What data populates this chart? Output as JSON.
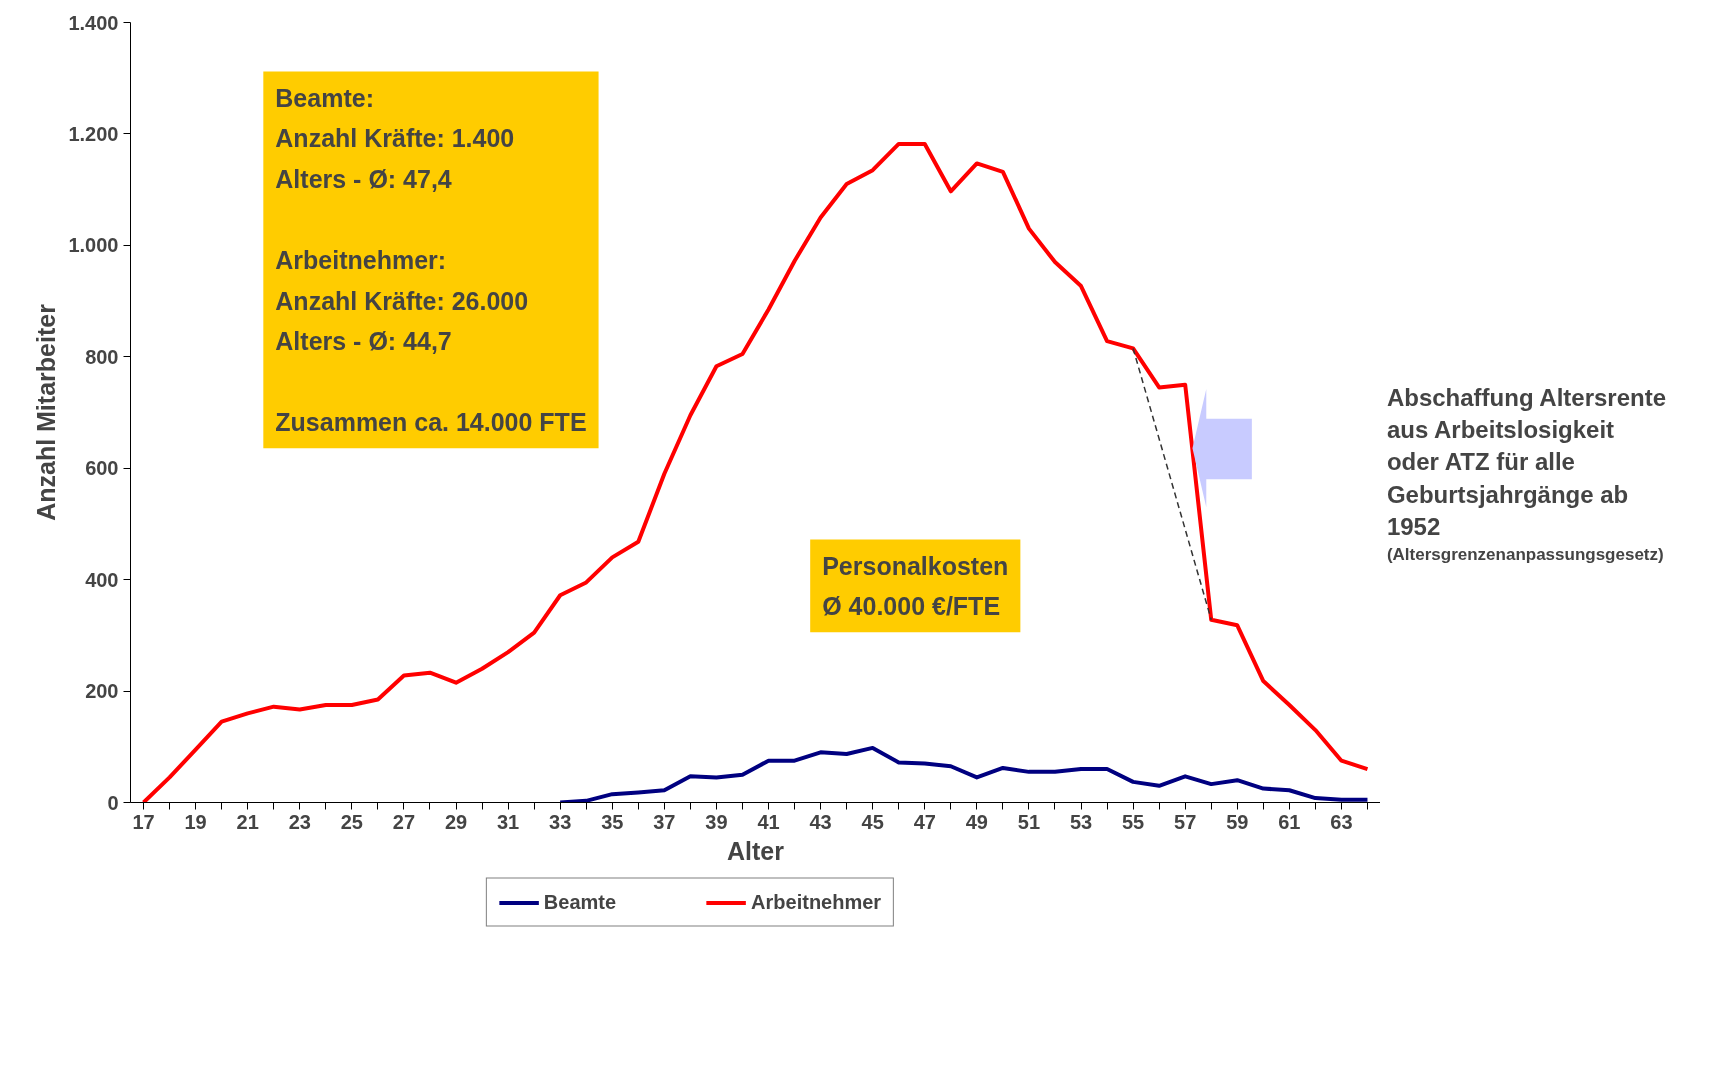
{
  "chart_data": {
    "type": "line",
    "xlabel": "Alter",
    "ylabel": "Anzahl Mitarbeiter",
    "x": [
      17,
      18,
      19,
      20,
      21,
      22,
      23,
      24,
      25,
      26,
      27,
      28,
      29,
      30,
      31,
      32,
      33,
      34,
      35,
      36,
      37,
      38,
      39,
      40,
      41,
      42,
      43,
      44,
      45,
      46,
      47,
      48,
      49,
      50,
      51,
      52,
      53,
      54,
      55,
      56,
      57,
      58,
      59,
      60,
      61,
      62,
      63,
      64
    ],
    "series": [
      {
        "name": "Beamte",
        "color": "#000080",
        "values": [
          null,
          null,
          null,
          null,
          null,
          null,
          null,
          null,
          null,
          null,
          null,
          null,
          null,
          null,
          null,
          null,
          0,
          3,
          15,
          18,
          22,
          47,
          45,
          50,
          75,
          75,
          90,
          87,
          98,
          72,
          70,
          65,
          45,
          62,
          55,
          55,
          60,
          60,
          37,
          30,
          47,
          33,
          40,
          25,
          22,
          8,
          5,
          5
        ]
      },
      {
        "name": "Arbeitnehmer",
        "color": "#ff0000",
        "values": [
          0,
          45,
          95,
          145,
          160,
          172,
          167,
          175,
          175,
          185,
          228,
          233,
          215,
          240,
          270,
          305,
          372,
          395,
          440,
          468,
          590,
          695,
          783,
          805,
          885,
          972,
          1050,
          1110,
          1135,
          1182,
          1182,
          1097,
          1147,
          1132,
          1030,
          970,
          927,
          828,
          815,
          745,
          750,
          328,
          318,
          218,
          175,
          130,
          75,
          60
        ]
      },
      {
        "color": "#333333",
        "line_style": "dashed",
        "x": [
          55,
          58
        ],
        "values": [
          815,
          328
        ]
      }
    ],
    "xlim": [
      16.5,
      64.5
    ],
    "xticks": [
      17,
      {
        "value": 18,
        "label": null
      },
      19,
      {
        "value": 20,
        "label": null
      },
      21,
      {
        "value": 22,
        "label": null
      },
      23,
      {
        "value": 24,
        "label": null
      },
      25,
      {
        "value": 26,
        "label": null
      },
      27,
      {
        "value": 28,
        "label": null
      },
      29,
      {
        "value": 30,
        "label": null
      },
      31,
      {
        "value": 32,
        "label": null
      },
      33,
      {
        "value": 34,
        "label": null
      },
      35,
      {
        "value": 36,
        "label": null
      },
      37,
      {
        "value": 38,
        "label": null
      },
      39,
      {
        "value": 40,
        "label": null
      },
      41,
      {
        "value": 42,
        "label": null
      },
      43,
      {
        "value": 44,
        "label": null
      },
      45,
      {
        "value": 46,
        "label": null
      },
      47,
      {
        "value": 48,
        "label": null
      },
      49,
      {
        "value": 50,
        "label": null
      },
      51,
      {
        "value": 52,
        "label": null
      },
      53,
      {
        "value": 54,
        "label": null
      },
      55,
      {
        "value": 56,
        "label": null
      },
      57,
      {
        "value": 58,
        "label": null
      },
      59,
      {
        "value": 60,
        "label": null
      },
      61,
      {
        "value": 62,
        "label": null
      },
      63,
      {
        "value": 64,
        "label": null
      }
    ],
    "ylim": [
      0,
      1400
    ],
    "yticks": [
      0,
      200,
      400,
      600,
      800,
      {
        "value": 1000,
        "label": "1.000"
      },
      {
        "value": 1200,
        "label": "1.200"
      },
      {
        "value": 1400,
        "label": "1.400"
      }
    ],
    "annotations": [
      "Beamte:\nAnzahl  Kräfte: 1.400\nAlters - Ø: 47,4\n\nArbeitnehmer:\nAnzahl  Kräfte: 26.000\nAlters - Ø: 44,7\n\nZusammen ca. 14.000 FTE",
      "Personalkosten\nØ 40.000 €/FTE",
      "Abschaffung Altersrente\naus Arbeitslosigkeit\noder ATZ für alle\nGeburtsjahrgänge ab\n1952",
      "(Altersgrenzenanpassungsgesetz)"
    ],
    "legend": "bottom",
    "grid": false,
    "marker": "none",
    "line_style": "solid"
  }
}
